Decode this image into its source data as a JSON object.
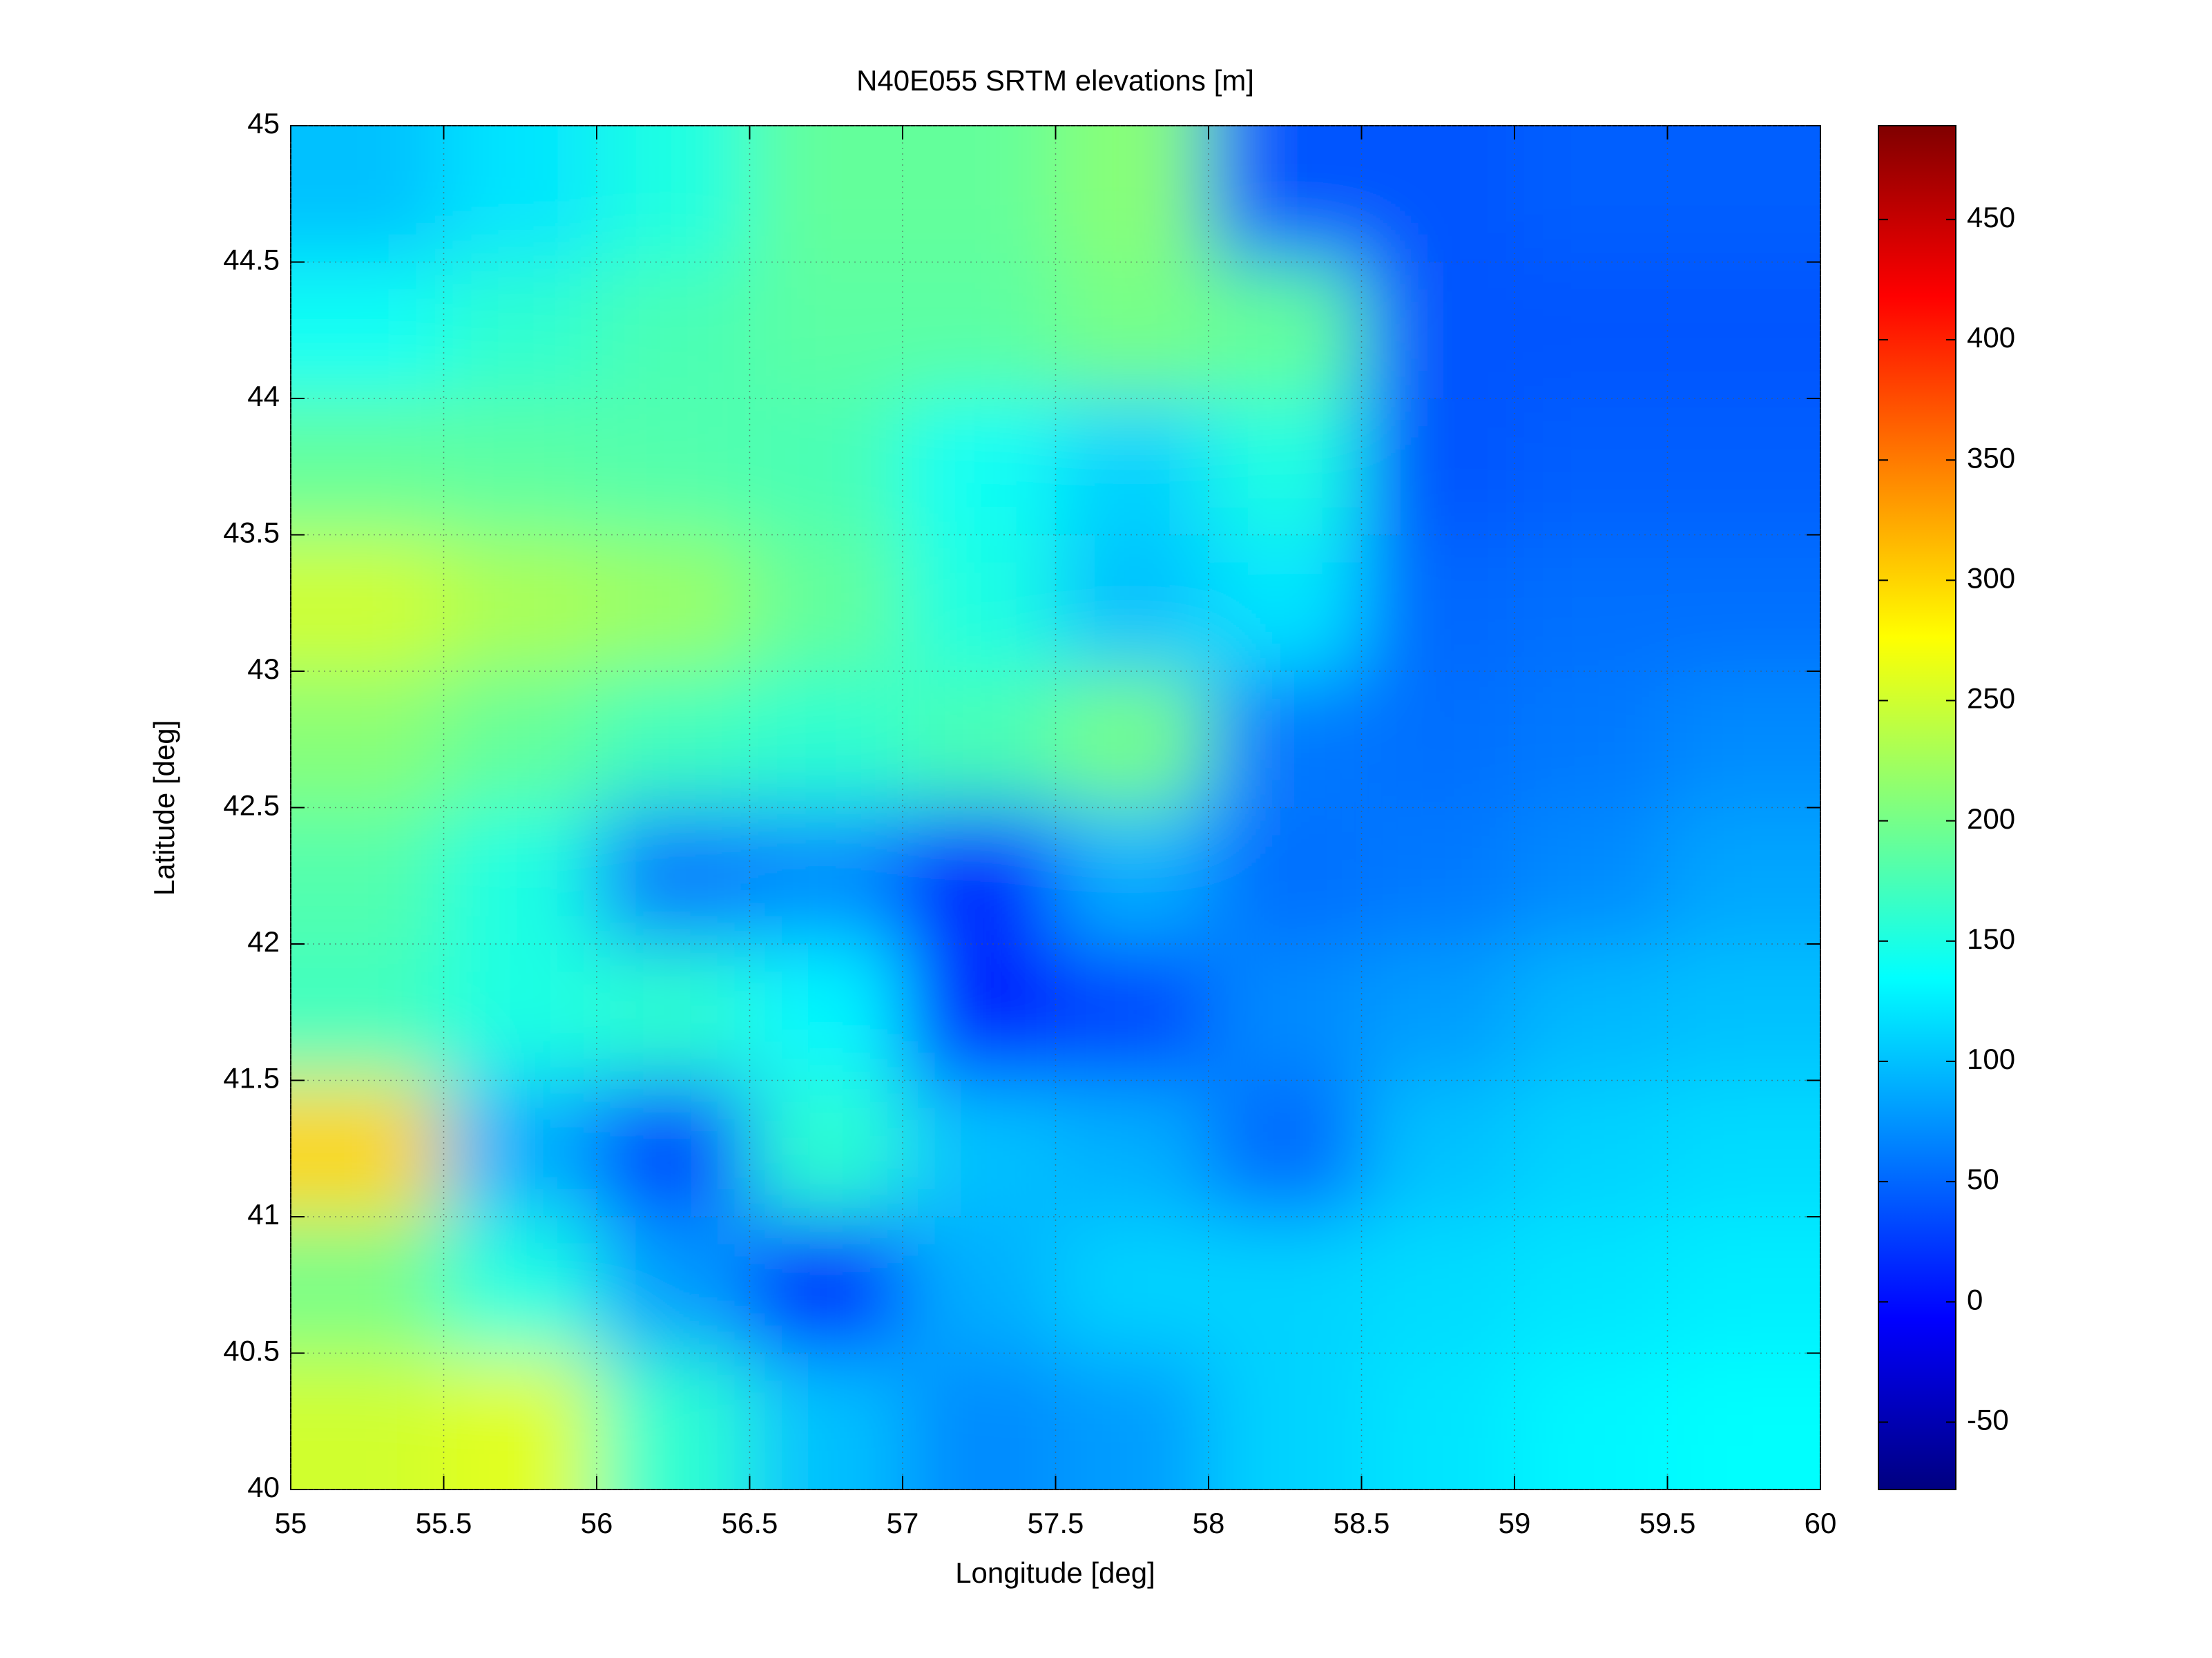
{
  "chart_data": {
    "type": "heatmap",
    "title": "N40E055 SRTM elevations [m]",
    "xlabel": "Longitude [deg]",
    "ylabel": "Latitude [deg]",
    "x": [
      55.25,
      55.75,
      56.25,
      56.75,
      57.25,
      57.75,
      58.25,
      58.75,
      59.25,
      59.75
    ],
    "y": [
      44.75,
      44.25,
      43.75,
      43.25,
      42.75,
      42.25,
      41.75,
      41.25,
      40.75,
      40.25
    ],
    "z": [
      [
        100,
        120,
        150,
        190,
        190,
        210,
        40,
        40,
        45,
        45
      ],
      [
        140,
        160,
        175,
        185,
        185,
        200,
        190,
        40,
        40,
        40
      ],
      [
        190,
        185,
        180,
        175,
        140,
        110,
        150,
        40,
        45,
        45
      ],
      [
        250,
        230,
        220,
        190,
        150,
        100,
        120,
        50,
        55,
        55
      ],
      [
        210,
        190,
        170,
        160,
        175,
        200,
        60,
        55,
        60,
        70
      ],
      [
        180,
        150,
        60,
        70,
        15,
        90,
        55,
        60,
        70,
        85
      ],
      [
        170,
        150,
        160,
        130,
        10,
        30,
        70,
        80,
        95,
        100
      ],
      [
        300,
        90,
        30,
        160,
        100,
        90,
        50,
        100,
        110,
        115
      ],
      [
        200,
        150,
        80,
        10,
        90,
        110,
        110,
        115,
        120,
        125
      ],
      [
        250,
        260,
        160,
        100,
        70,
        80,
        110,
        120,
        130,
        135
      ]
    ],
    "colormap": "jet",
    "clim": [
      -78,
      489
    ],
    "cticks": [
      -50,
      0,
      50,
      100,
      150,
      200,
      250,
      300,
      350,
      400,
      450
    ],
    "xlim": [
      55,
      60
    ],
    "ylim": [
      40,
      45
    ],
    "xticks": [
      55,
      55.5,
      56,
      56.5,
      57,
      57.5,
      58,
      58.5,
      59,
      59.5,
      60
    ],
    "yticks": [
      40,
      40.5,
      41,
      41.5,
      42,
      42.5,
      43,
      43.5,
      44,
      44.5,
      45
    ],
    "grid": true
  }
}
